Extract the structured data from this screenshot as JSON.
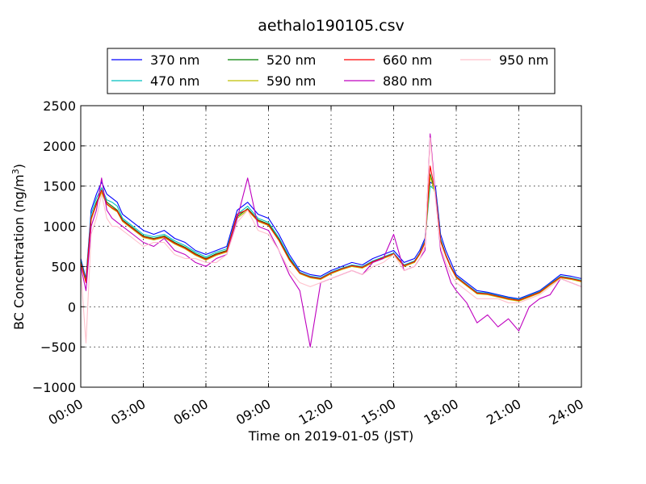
{
  "chart_data": {
    "type": "line",
    "title": "aethalo190105.csv",
    "xlabel": "Time on 2019-01-05 (JST)",
    "ylabel": "BC Concentration (ng/m",
    "ylabel_sup": "3",
    "ylabel_end": ")",
    "xlim": [
      0,
      24
    ],
    "ylim": [
      -1000,
      2500
    ],
    "x_ticks": [
      0,
      3,
      6,
      9,
      12,
      15,
      18,
      21,
      24
    ],
    "x_tick_labels": [
      "00:00",
      "03:00",
      "06:00",
      "09:00",
      "12:00",
      "15:00",
      "18:00",
      "21:00",
      "24:00"
    ],
    "y_ticks": [
      -1000,
      -500,
      0,
      500,
      1000,
      1500,
      2000,
      2500
    ],
    "y_tick_labels": [
      "−1000",
      "−500",
      "0",
      "500",
      "1000",
      "1500",
      "2000",
      "2500"
    ],
    "grid": true,
    "legend": {
      "position": "top-center",
      "columns": 4
    },
    "x": [
      0,
      0.25,
      0.5,
      0.75,
      1,
      1.25,
      1.5,
      1.75,
      2,
      2.5,
      3,
      3.5,
      4,
      4.5,
      5,
      5.5,
      6,
      6.5,
      7,
      7.5,
      8,
      8.5,
      9,
      9.5,
      10,
      10.5,
      11,
      11.5,
      12,
      12.5,
      13,
      13.5,
      14,
      14.5,
      15,
      15.5,
      16,
      16.25,
      16.5,
      16.75,
      17,
      17.25,
      17.5,
      17.75,
      18,
      18.5,
      19,
      19.5,
      20,
      20.5,
      21,
      21.5,
      22,
      22.5,
      23,
      23.5,
      24
    ],
    "series": [
      {
        "name": "370 nm",
        "color": "#0000ff",
        "values": [
          600,
          350,
          1200,
          1400,
          1550,
          1400,
          1350,
          1300,
          1150,
          1050,
          950,
          900,
          950,
          850,
          800,
          700,
          650,
          700,
          750,
          1200,
          1300,
          1150,
          1100,
          900,
          650,
          450,
          400,
          380,
          450,
          500,
          550,
          520,
          600,
          650,
          700,
          550,
          600,
          700,
          850,
          1550,
          1500,
          900,
          700,
          550,
          400,
          300,
          200,
          180,
          150,
          120,
          100,
          150,
          200,
          300,
          400,
          380,
          350
        ]
      },
      {
        "name": "470 nm",
        "color": "#00bfbf",
        "values": [
          580,
          330,
          1150,
          1350,
          1480,
          1330,
          1300,
          1250,
          1100,
          1000,
          900,
          870,
          900,
          820,
          760,
          680,
          620,
          680,
          720,
          1150,
          1250,
          1100,
          1050,
          860,
          620,
          430,
          380,
          360,
          430,
          480,
          520,
          500,
          570,
          620,
          670,
          520,
          570,
          670,
          820,
          1500,
          1450,
          850,
          650,
          500,
          380,
          280,
          180,
          170,
          140,
          110,
          90,
          140,
          190,
          290,
          380,
          360,
          330
        ]
      },
      {
        "name": "520 nm",
        "color": "#008000",
        "values": [
          560,
          320,
          1100,
          1300,
          1450,
          1300,
          1250,
          1200,
          1080,
          980,
          880,
          850,
          880,
          800,
          740,
          660,
          600,
          660,
          700,
          1120,
          1220,
          1080,
          1030,
          840,
          600,
          420,
          370,
          350,
          420,
          470,
          510,
          490,
          560,
          610,
          660,
          510,
          560,
          660,
          800,
          1650,
          1420,
          830,
          640,
          490,
          370,
          270,
          170,
          160,
          130,
          100,
          80,
          130,
          180,
          280,
          370,
          350,
          320
        ]
      },
      {
        "name": "590 nm",
        "color": "#bfbf00",
        "values": [
          540,
          310,
          1080,
          1270,
          1420,
          1270,
          1220,
          1180,
          1060,
          960,
          860,
          830,
          860,
          780,
          720,
          640,
          580,
          640,
          680,
          1100,
          1200,
          1060,
          1010,
          820,
          580,
          410,
          360,
          340,
          410,
          460,
          500,
          480,
          550,
          600,
          650,
          500,
          550,
          650,
          790,
          1620,
          1400,
          810,
          630,
          480,
          360,
          260,
          160,
          150,
          120,
          90,
          70,
          120,
          170,
          270,
          360,
          340,
          310
        ]
      },
      {
        "name": "660 nm",
        "color": "#ff0000",
        "values": [
          550,
          300,
          1100,
          1280,
          1450,
          1280,
          1230,
          1190,
          1070,
          970,
          870,
          840,
          870,
          790,
          730,
          650,
          590,
          650,
          690,
          1150,
          1210,
          1070,
          1020,
          830,
          590,
          420,
          370,
          350,
          420,
          470,
          510,
          490,
          560,
          610,
          660,
          510,
          560,
          660,
          800,
          1750,
          1420,
          820,
          640,
          490,
          370,
          270,
          170,
          160,
          130,
          100,
          80,
          130,
          180,
          280,
          370,
          350,
          320
        ]
      },
      {
        "name": "880 nm",
        "color": "#bf00bf",
        "values": [
          500,
          200,
          1000,
          1200,
          1600,
          1200,
          1100,
          1050,
          1000,
          900,
          800,
          750,
          850,
          700,
          650,
          550,
          500,
          600,
          650,
          1100,
          1600,
          1000,
          950,
          700,
          400,
          200,
          -500,
          300,
          350,
          400,
          450,
          400,
          550,
          600,
          900,
          450,
          500,
          600,
          700,
          2150,
          1400,
          700,
          500,
          300,
          200,
          50,
          -200,
          -100,
          -250,
          -150,
          -300,
          0,
          100,
          150,
          350,
          300,
          250
        ]
      },
      {
        "name": "950 nm",
        "color": "#ffc0cb",
        "values": [
          450,
          -450,
          900,
          1100,
          1400,
          1100,
          1000,
          1000,
          950,
          850,
          750,
          800,
          800,
          650,
          600,
          600,
          550,
          550,
          650,
          1050,
          1200,
          950,
          900,
          700,
          450,
          300,
          250,
          300,
          350,
          400,
          450,
          400,
          500,
          550,
          650,
          450,
          500,
          600,
          750,
          2100,
          1350,
          750,
          550,
          400,
          300,
          200,
          100,
          100,
          100,
          50,
          50,
          100,
          150,
          250,
          350,
          300,
          250
        ]
      }
    ]
  }
}
